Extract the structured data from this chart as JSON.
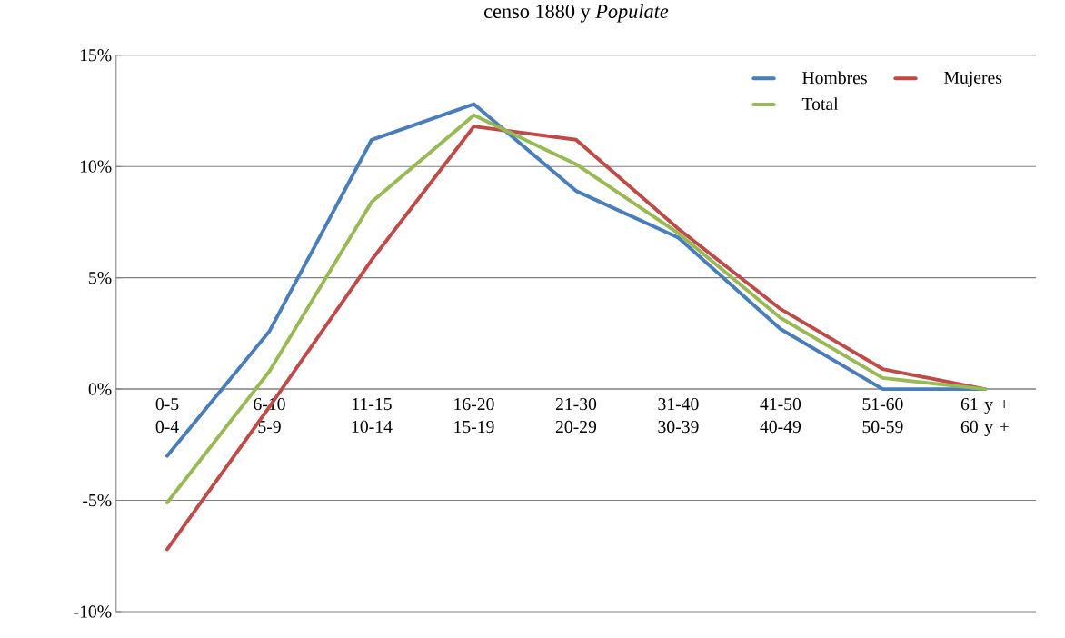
{
  "chart_data": {
    "type": "line",
    "title": "censo 1880 y *Populate*",
    "categories": [
      "0-5 0-4",
      "6-10 5-9",
      "11-15 10-14",
      "16-20 15-19",
      "21-30 20-29",
      "31-40 30-39",
      "41-50 40-49",
      "51-60 50-59",
      "61 y + 60 y +"
    ],
    "series": [
      {
        "name": "Hombres",
        "color": "#4a7ebb",
        "values": [
          -3.0,
          2.6,
          11.2,
          12.8,
          8.9,
          6.8,
          2.7,
          0.0,
          0.0
        ]
      },
      {
        "name": "Mujeres",
        "color": "#be4b48",
        "values": [
          -7.2,
          -0.8,
          5.8,
          11.8,
          11.2,
          7.2,
          3.6,
          0.9,
          0.0
        ]
      },
      {
        "name": "Total",
        "color": "#98b954",
        "values": [
          -5.1,
          0.8,
          8.4,
          12.3,
          10.1,
          7.0,
          3.2,
          0.5,
          0.0
        ]
      }
    ],
    "ylim": [
      -10,
      15
    ],
    "yticks": [
      {
        "value": -10,
        "label": "-10%"
      },
      {
        "value": -5,
        "label": "-5%"
      },
      {
        "value": 0,
        "label": "0%"
      },
      {
        "value": 5,
        "label": "5%"
      },
      {
        "value": 10,
        "label": "10%"
      },
      {
        "value": 15,
        "label": "15%"
      }
    ],
    "grid": "y",
    "legend": "top right",
    "line_style": "solid",
    "marker": "none"
  }
}
